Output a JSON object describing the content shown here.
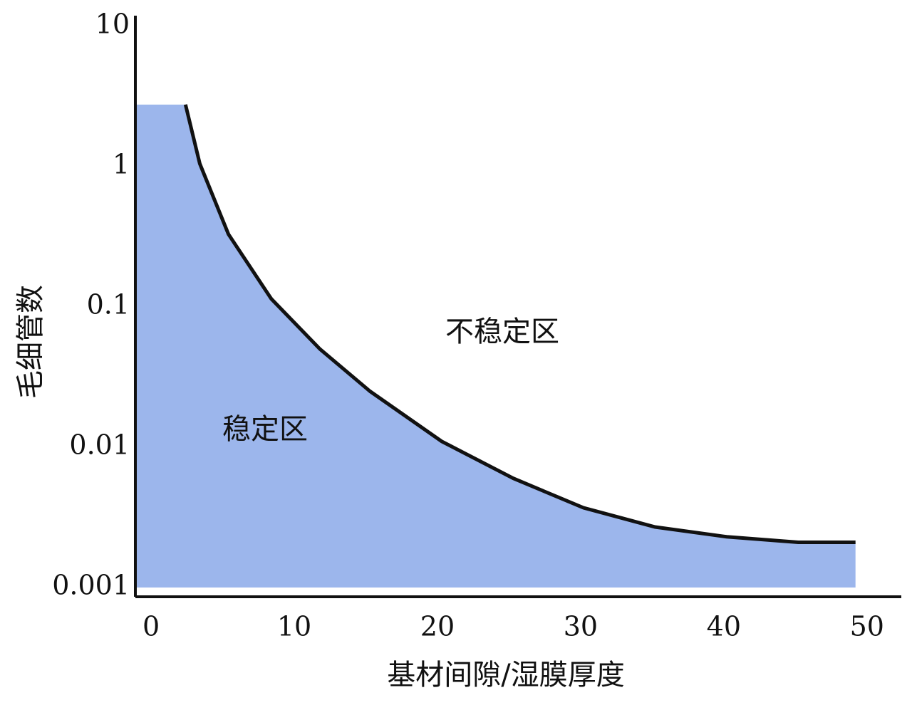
{
  "chart_data": {
    "type": "area",
    "x": [
      -1,
      2.5,
      3.5,
      5.5,
      8.5,
      11.9,
      15.4,
      20.4,
      25.4,
      30.3,
      35.3,
      40.3,
      45.3,
      49.3
    ],
    "values": [
      2.77,
      2.77,
      1.05,
      0.33,
      0.114,
      0.05,
      0.025,
      0.011,
      0.006,
      0.0037,
      0.0027,
      0.0023,
      0.0021,
      0.0021
    ],
    "color": "#9cb6ec",
    "line_color": "#111111",
    "xlim": [
      -1,
      52.5
    ],
    "xticks": [
      0,
      10,
      20,
      30,
      40,
      50
    ],
    "ylim": [
      0.001,
      10
    ],
    "yticks": [
      0.001,
      0.01,
      0.1,
      1,
      10
    ],
    "log_scale": "y",
    "x_label": "基材间隙/湿膜厚度",
    "y_label": "毛细管数",
    "annotations": [
      "不稳定区",
      "稳定区"
    ]
  }
}
